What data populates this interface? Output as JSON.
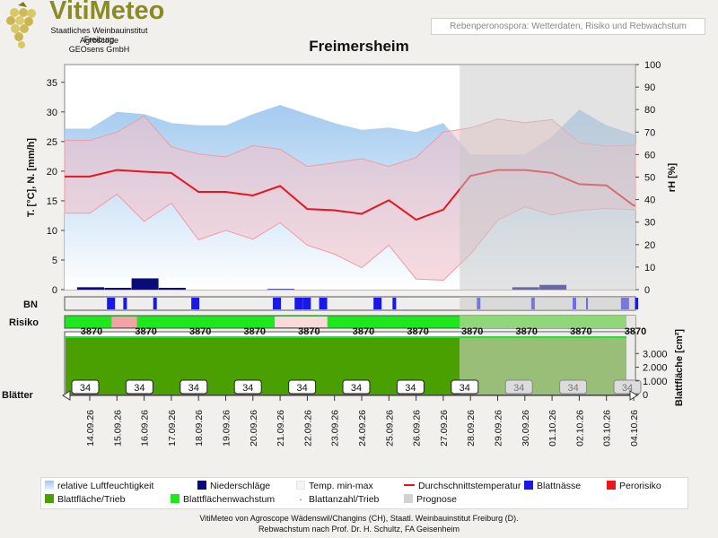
{
  "header": {
    "logo_name": "VitiMeteo",
    "logo_lines": [
      "Staatliches Weinbauinstitut Freiburg",
      "Agroscope",
      "GEOsens GmbH"
    ],
    "topic": "Rebenperonospora: Wetterdaten, Risiko und Rebwachstum",
    "station": "Freimersheim"
  },
  "colors": {
    "humidity": "#9fc8ee",
    "precip": "#0a0a78",
    "temp_band": "#f5bfc6",
    "temp_mean": "#e8151b",
    "leaf_wetness": "#1818e8",
    "risk": "#f0141b",
    "leaf_area": "#4aa000",
    "leaf_growth": "#1de81d",
    "forecast": "#c8c8c8"
  },
  "chart_data": {
    "type": "line",
    "dates": [
      "14.09.26",
      "15.09.26",
      "16.09.26",
      "17.09.26",
      "18.09.26",
      "19.09.26",
      "20.09.26",
      "21.09.26",
      "22.09.26",
      "23.09.26",
      "24.09.26",
      "25.09.26",
      "26.09.26",
      "27.09.26",
      "28.09.26",
      "29.09.26",
      "30.09.26",
      "01.10.26",
      "02.10.26",
      "03.10.26",
      "04.10.26"
    ],
    "forecast_start": "28.09.26",
    "y_left": {
      "label": "T. [°C], N. [mm/h]",
      "min": 0,
      "max": 38,
      "ticks": [
        0,
        5,
        10,
        15,
        20,
        25,
        30,
        35
      ]
    },
    "y_right": {
      "label": "rH [%]",
      "min": 0,
      "max": 100,
      "ticks": [
        0,
        10,
        20,
        30,
        40,
        50,
        60,
        70,
        80,
        90,
        100
      ]
    },
    "humidity": [
      71.5,
      79,
      78,
      74,
      73,
      73,
      78,
      82,
      78,
      74,
      71,
      72,
      70,
      74,
      60,
      60,
      60,
      68,
      80,
      73,
      69
    ],
    "temp_max": [
      25.2,
      26.6,
      29.3,
      24.1,
      22.9,
      22.4,
      24.3,
      23.7,
      20.8,
      21.4,
      22.1,
      20.8,
      22.3,
      26.6,
      27.3,
      28.8,
      28.2,
      28.7,
      24.8,
      24.2,
      24.4
    ],
    "temp_mean": [
      19.1,
      20.2,
      19.9,
      19.7,
      16.5,
      16.5,
      15.9,
      17.5,
      13.6,
      13.4,
      12.8,
      15.1,
      11.8,
      13.5,
      19.2,
      20.2,
      20.2,
      19.7,
      17.8,
      17.6,
      14.2
    ],
    "temp_min": [
      12.9,
      16.1,
      11.5,
      14.6,
      8.4,
      10.0,
      8.5,
      11.3,
      7.5,
      6.0,
      3.7,
      7.5,
      1.8,
      1.6,
      6.0,
      11.7,
      14.0,
      12.6,
      13.4,
      13.7,
      13.5
    ],
    "precip": [
      0.4,
      0.3,
      1.9,
      0.3,
      0,
      0,
      0,
      0.1,
      0,
      0,
      0,
      0,
      0,
      0,
      0,
      0,
      0.4,
      0.8,
      0,
      0,
      0
    ],
    "leaf_wetness_days": [
      0.7,
      1.3,
      2.4,
      3.8,
      6.8,
      7.6,
      7.9,
      8.5,
      10.5,
      11.2,
      14.3,
      16.3,
      19.6,
      20.1
    ],
    "risk_periods": [
      [
        "15.09.26",
        "16.09.26"
      ],
      [
        "21.09.26",
        "23.09.26"
      ]
    ],
    "y_leaf": {
      "label": "Blattfläche [cm²]",
      "ticks": [
        0,
        1000,
        2000,
        3000
      ],
      "tick_labels": [
        "0",
        "1.000",
        "2.000",
        "3.000"
      ]
    },
    "leaf_area_labels": [
      "3870",
      "3870",
      "3870",
      "3870",
      "3870",
      "3870",
      "3870",
      "3870",
      "3870",
      "3870",
      "3870"
    ],
    "leaf_count_labels": [
      "34",
      "34",
      "34",
      "34",
      "34",
      "34",
      "34",
      "34",
      "34",
      "34",
      "34"
    ],
    "row_labels": {
      "bn": "BN",
      "risk": "Risiko",
      "leaves": "Blätter"
    }
  },
  "legend": {
    "humidity": "relative Luftfeuchtigkeit",
    "precip": "Niederschläge",
    "temp_range": "Temp. min-max",
    "temp_mean": "Durchschnittstemperatur",
    "leaf_wetness": "Blattnässe",
    "risk": "Perorisiko",
    "leaf_area": "Blattfläche/Trieb",
    "leaf_growth": "Blattflächenwachstum",
    "leaf_count": "Blattanzahl/Trieb",
    "forecast": "Prognose"
  },
  "footer": {
    "line1": "VitiMeteo von Agroscope Wädenswil/Changins (CH), Staatl. Weinbauinstitut Freiburg (D).",
    "line2": "Rebwachstum nach Prof. Dr. H. Schultz, FA Geisenheim"
  }
}
